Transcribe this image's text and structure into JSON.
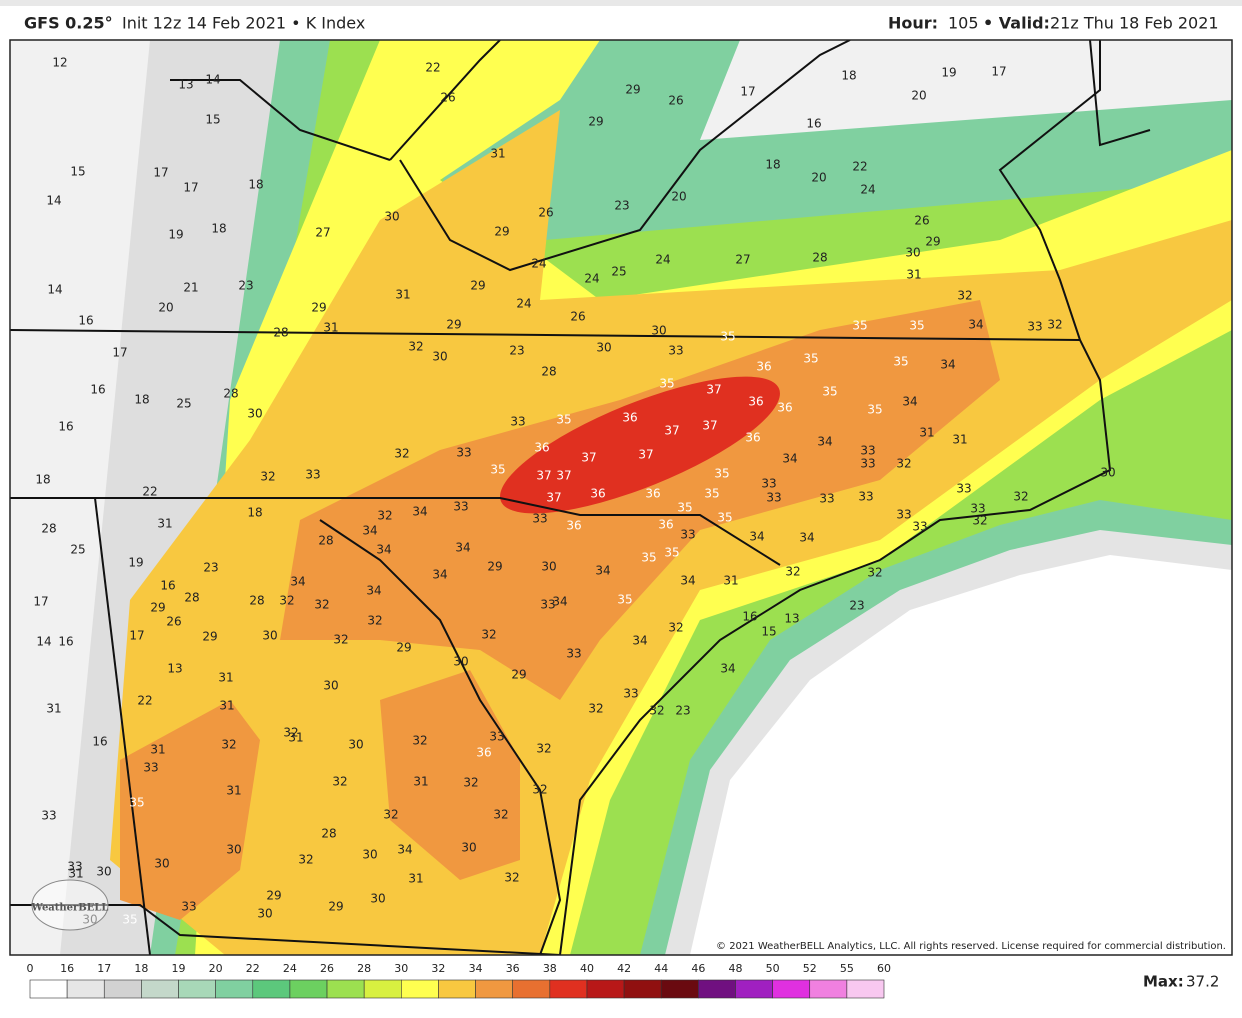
{
  "header": {
    "model": "GFS 0.25°",
    "run": "Init 12z 14 Feb 2021 • K Index",
    "hour_label": "Hour:",
    "hour": "105",
    "valid_label": "• Valid:",
    "valid": "21z Thu 18 Feb 2021"
  },
  "logo": "WeatherBELL",
  "copyright": "© 2021 WeatherBELL Analytics, LLC. All rights reserved. License required for commercial distribution.",
  "colorbar": {
    "ticks": [
      0,
      16,
      17,
      18,
      19,
      20,
      22,
      24,
      26,
      28,
      30,
      32,
      34,
      36,
      38,
      40,
      42,
      44,
      46,
      48,
      50,
      52,
      55,
      60
    ],
    "colors": [
      "#ffffff",
      "#e6e6e6",
      "#d2d2d2",
      "#c4d8ca",
      "#a8d8b8",
      "#80d0a0",
      "#5cc87c",
      "#6cd060",
      "#9ce050",
      "#d8f040",
      "#ffff50",
      "#f8c840",
      "#f09840",
      "#e87030",
      "#e03020",
      "#b81818",
      "#901010",
      "#6a0a10",
      "#701080",
      "#a020c0",
      "#e030e0",
      "#f080e0",
      "#f8c8f0"
    ]
  },
  "max": {
    "label": "Max:",
    "value": 37.2
  },
  "map_labels": [
    12,
    14,
    13,
    15,
    22,
    26,
    29,
    26,
    29,
    17,
    18,
    19,
    17,
    20,
    16,
    31,
    17,
    17,
    18,
    15,
    14,
    30,
    26,
    23,
    20,
    18,
    20,
    22,
    24,
    26,
    19,
    18,
    27,
    29,
    24,
    24,
    25,
    24,
    27,
    28,
    30,
    29,
    14,
    20,
    21,
    23,
    31,
    29,
    24,
    26,
    29,
    31,
    32,
    16,
    28,
    31,
    29,
    30,
    35,
    35,
    35,
    34,
    33,
    32,
    17,
    32,
    30,
    23,
    30,
    33,
    36,
    35,
    35,
    34,
    16,
    18,
    25,
    28,
    28,
    35,
    37,
    36,
    36,
    35,
    35,
    34,
    16,
    30,
    33,
    35,
    36,
    37,
    37,
    36,
    34,
    33,
    31,
    31,
    32,
    33,
    36,
    37,
    37,
    34,
    33,
    32,
    18,
    32,
    33,
    35,
    37,
    37,
    35,
    33,
    22,
    37,
    36,
    36,
    35,
    33,
    33,
    33,
    33,
    32,
    30,
    28,
    18,
    32,
    34,
    33,
    33,
    36,
    36,
    35,
    35,
    33,
    33,
    33,
    32,
    31,
    25,
    19,
    23,
    28,
    34,
    34,
    34,
    33,
    34,
    34,
    29,
    30,
    34,
    35,
    35,
    34,
    34,
    32,
    32,
    23,
    17,
    16,
    28,
    29,
    28,
    32,
    32,
    34,
    33,
    34,
    35,
    34,
    31,
    25,
    16,
    15,
    13,
    14,
    16,
    17,
    26,
    29,
    30,
    32,
    32,
    32,
    34,
    32,
    29,
    30,
    33,
    34,
    13,
    31,
    30,
    29,
    33,
    31,
    22,
    31,
    32,
    31,
    30,
    32,
    33,
    32,
    32,
    23,
    16,
    31,
    32,
    36,
    32,
    33,
    32,
    31,
    32,
    32,
    31,
    35,
    32,
    32,
    33,
    28,
    30,
    34,
    30,
    30,
    32,
    30,
    33,
    30,
    31,
    31,
    32,
    29,
    30,
    33,
    30,
    29,
    30,
    35
  ]
}
